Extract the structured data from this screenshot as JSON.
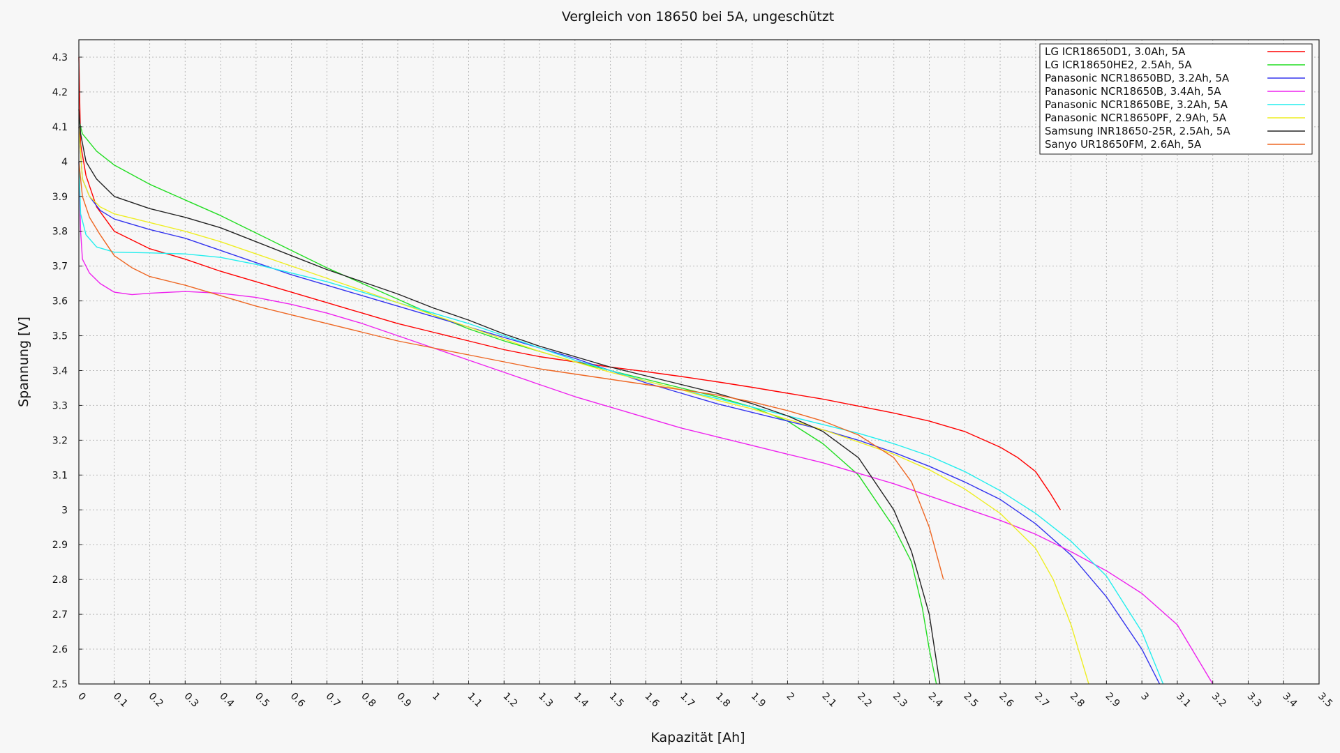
{
  "chart_data": {
    "type": "line",
    "title": "Vergleich von 18650 bei 5A, ungeschützt",
    "xlabel": "Kapazität [Ah]",
    "ylabel": "Spannung [V]",
    "xlim": [
      0,
      3.5
    ],
    "ylim": [
      2.5,
      4.35
    ],
    "grid": true,
    "legend_position": "top-right",
    "x_ticks": [
      "0",
      "0.1",
      "0.2",
      "0.3",
      "0.4",
      "0.5",
      "0.6",
      "0.7",
      "0.8",
      "0.9",
      "1",
      "1.1",
      "1.2",
      "1.3",
      "1.4",
      "1.5",
      "1.6",
      "1.7",
      "1.8",
      "1.9",
      "2",
      "2.1",
      "2.2",
      "2.3",
      "2.4",
      "2.5",
      "2.6",
      "2.7",
      "2.8",
      "2.9",
      "3",
      "3.1",
      "3.2",
      "3.3",
      "3.4",
      "3.5"
    ],
    "y_ticks": [
      "2.5",
      "2.6",
      "2.7",
      "2.8",
      "2.9",
      "3",
      "3.1",
      "3.2",
      "3.3",
      "3.4",
      "3.5",
      "3.6",
      "3.7",
      "3.8",
      "3.9",
      "4",
      "4.1",
      "4.2",
      "4.3"
    ],
    "series": [
      {
        "name": "LG ICR18650D1, 3.0Ah, 5A",
        "color": "#ff0000",
        "points": [
          [
            0,
            4.3
          ],
          [
            0.005,
            4.05
          ],
          [
            0.02,
            3.96
          ],
          [
            0.05,
            3.87
          ],
          [
            0.1,
            3.8
          ],
          [
            0.2,
            3.75
          ],
          [
            0.3,
            3.72
          ],
          [
            0.4,
            3.685
          ],
          [
            0.5,
            3.655
          ],
          [
            0.6,
            3.625
          ],
          [
            0.7,
            3.595
          ],
          [
            0.8,
            3.565
          ],
          [
            0.9,
            3.535
          ],
          [
            1.0,
            3.51
          ],
          [
            1.1,
            3.485
          ],
          [
            1.2,
            3.46
          ],
          [
            1.3,
            3.44
          ],
          [
            1.4,
            3.425
          ],
          [
            1.5,
            3.41
          ],
          [
            1.6,
            3.397
          ],
          [
            1.7,
            3.383
          ],
          [
            1.8,
            3.368
          ],
          [
            1.9,
            3.352
          ],
          [
            2.0,
            3.335
          ],
          [
            2.1,
            3.318
          ],
          [
            2.2,
            3.298
          ],
          [
            2.3,
            3.278
          ],
          [
            2.4,
            3.255
          ],
          [
            2.5,
            3.225
          ],
          [
            2.6,
            3.18
          ],
          [
            2.65,
            3.15
          ],
          [
            2.7,
            3.11
          ],
          [
            2.74,
            3.05
          ],
          [
            2.77,
            3.0
          ]
        ]
      },
      {
        "name": "LG ICR18650HE2, 2.5Ah, 5A",
        "color": "#22dd22",
        "points": [
          [
            0,
            4.12
          ],
          [
            0.01,
            4.08
          ],
          [
            0.05,
            4.03
          ],
          [
            0.1,
            3.99
          ],
          [
            0.2,
            3.935
          ],
          [
            0.3,
            3.89
          ],
          [
            0.4,
            3.845
          ],
          [
            0.5,
            3.795
          ],
          [
            0.6,
            3.745
          ],
          [
            0.7,
            3.695
          ],
          [
            0.8,
            3.65
          ],
          [
            0.9,
            3.605
          ],
          [
            1.0,
            3.56
          ],
          [
            1.1,
            3.52
          ],
          [
            1.2,
            3.485
          ],
          [
            1.3,
            3.455
          ],
          [
            1.4,
            3.425
          ],
          [
            1.5,
            3.4
          ],
          [
            1.6,
            3.375
          ],
          [
            1.7,
            3.35
          ],
          [
            1.8,
            3.325
          ],
          [
            1.9,
            3.295
          ],
          [
            2.0,
            3.255
          ],
          [
            2.1,
            3.19
          ],
          [
            2.2,
            3.1
          ],
          [
            2.3,
            2.95
          ],
          [
            2.35,
            2.85
          ],
          [
            2.38,
            2.72
          ],
          [
            2.4,
            2.6
          ],
          [
            2.42,
            2.5
          ]
        ]
      },
      {
        "name": "Panasonic NCR18650BD, 3.2Ah, 5A",
        "color": "#3333ee",
        "points": [
          [
            0,
            4.1
          ],
          [
            0.01,
            3.95
          ],
          [
            0.03,
            3.9
          ],
          [
            0.06,
            3.86
          ],
          [
            0.1,
            3.835
          ],
          [
            0.2,
            3.805
          ],
          [
            0.3,
            3.78
          ],
          [
            0.4,
            3.745
          ],
          [
            0.5,
            3.71
          ],
          [
            0.6,
            3.675
          ],
          [
            0.7,
            3.645
          ],
          [
            0.8,
            3.615
          ],
          [
            0.9,
            3.585
          ],
          [
            1.0,
            3.555
          ],
          [
            1.1,
            3.525
          ],
          [
            1.2,
            3.495
          ],
          [
            1.3,
            3.465
          ],
          [
            1.4,
            3.435
          ],
          [
            1.5,
            3.4
          ],
          [
            1.6,
            3.365
          ],
          [
            1.7,
            3.335
          ],
          [
            1.8,
            3.305
          ],
          [
            1.9,
            3.28
          ],
          [
            2.0,
            3.255
          ],
          [
            2.1,
            3.23
          ],
          [
            2.2,
            3.2
          ],
          [
            2.3,
            3.165
          ],
          [
            2.4,
            3.125
          ],
          [
            2.5,
            3.08
          ],
          [
            2.6,
            3.03
          ],
          [
            2.7,
            2.96
          ],
          [
            2.8,
            2.87
          ],
          [
            2.9,
            2.75
          ],
          [
            3.0,
            2.6
          ],
          [
            3.05,
            2.5
          ]
        ]
      },
      {
        "name": "Panasonic NCR18650B, 3.4Ah, 5A",
        "color": "#ee22ee",
        "points": [
          [
            0,
            4.0
          ],
          [
            0.005,
            3.8
          ],
          [
            0.01,
            3.72
          ],
          [
            0.03,
            3.68
          ],
          [
            0.06,
            3.65
          ],
          [
            0.1,
            3.625
          ],
          [
            0.15,
            3.618
          ],
          [
            0.2,
            3.622
          ],
          [
            0.3,
            3.627
          ],
          [
            0.4,
            3.622
          ],
          [
            0.5,
            3.61
          ],
          [
            0.6,
            3.59
          ],
          [
            0.7,
            3.565
          ],
          [
            0.8,
            3.535
          ],
          [
            0.9,
            3.5
          ],
          [
            1.0,
            3.465
          ],
          [
            1.1,
            3.43
          ],
          [
            1.2,
            3.395
          ],
          [
            1.3,
            3.36
          ],
          [
            1.4,
            3.325
          ],
          [
            1.5,
            3.295
          ],
          [
            1.6,
            3.265
          ],
          [
            1.7,
            3.235
          ],
          [
            1.8,
            3.21
          ],
          [
            1.9,
            3.185
          ],
          [
            2.0,
            3.16
          ],
          [
            2.1,
            3.135
          ],
          [
            2.2,
            3.105
          ],
          [
            2.3,
            3.075
          ],
          [
            2.4,
            3.04
          ],
          [
            2.5,
            3.005
          ],
          [
            2.6,
            2.97
          ],
          [
            2.7,
            2.93
          ],
          [
            2.8,
            2.88
          ],
          [
            2.9,
            2.825
          ],
          [
            3.0,
            2.76
          ],
          [
            3.1,
            2.67
          ],
          [
            3.2,
            2.5
          ]
        ]
      },
      {
        "name": "Panasonic NCR18650BE, 3.2Ah, 5A",
        "color": "#22eeee",
        "points": [
          [
            0,
            4.0
          ],
          [
            0.005,
            3.85
          ],
          [
            0.02,
            3.79
          ],
          [
            0.05,
            3.755
          ],
          [
            0.1,
            3.74
          ],
          [
            0.2,
            3.738
          ],
          [
            0.3,
            3.735
          ],
          [
            0.4,
            3.725
          ],
          [
            0.5,
            3.705
          ],
          [
            0.6,
            3.68
          ],
          [
            0.7,
            3.655
          ],
          [
            0.8,
            3.625
          ],
          [
            0.9,
            3.595
          ],
          [
            1.0,
            3.565
          ],
          [
            1.1,
            3.535
          ],
          [
            1.2,
            3.5
          ],
          [
            1.3,
            3.465
          ],
          [
            1.4,
            3.43
          ],
          [
            1.5,
            3.4
          ],
          [
            1.6,
            3.37
          ],
          [
            1.7,
            3.345
          ],
          [
            1.8,
            3.32
          ],
          [
            1.9,
            3.295
          ],
          [
            2.0,
            3.27
          ],
          [
            2.1,
            3.245
          ],
          [
            2.2,
            3.22
          ],
          [
            2.3,
            3.19
          ],
          [
            2.4,
            3.155
          ],
          [
            2.5,
            3.11
          ],
          [
            2.6,
            3.055
          ],
          [
            2.7,
            2.99
          ],
          [
            2.8,
            2.91
          ],
          [
            2.9,
            2.81
          ],
          [
            3.0,
            2.65
          ],
          [
            3.06,
            2.5
          ]
        ]
      },
      {
        "name": "Panasonic NCR18650PF, 2.9Ah, 5A",
        "color": "#eeee22",
        "points": [
          [
            0,
            4.1
          ],
          [
            0.01,
            3.95
          ],
          [
            0.03,
            3.9
          ],
          [
            0.06,
            3.87
          ],
          [
            0.1,
            3.85
          ],
          [
            0.2,
            3.825
          ],
          [
            0.3,
            3.8
          ],
          [
            0.4,
            3.77
          ],
          [
            0.5,
            3.735
          ],
          [
            0.6,
            3.7
          ],
          [
            0.7,
            3.665
          ],
          [
            0.8,
            3.63
          ],
          [
            0.9,
            3.595
          ],
          [
            1.0,
            3.56
          ],
          [
            1.1,
            3.525
          ],
          [
            1.2,
            3.49
          ],
          [
            1.3,
            3.455
          ],
          [
            1.4,
            3.425
          ],
          [
            1.5,
            3.395
          ],
          [
            1.6,
            3.37
          ],
          [
            1.7,
            3.345
          ],
          [
            1.8,
            3.315
          ],
          [
            1.9,
            3.29
          ],
          [
            2.0,
            3.26
          ],
          [
            2.1,
            3.23
          ],
          [
            2.2,
            3.195
          ],
          [
            2.3,
            3.16
          ],
          [
            2.4,
            3.115
          ],
          [
            2.5,
            3.06
          ],
          [
            2.6,
            2.99
          ],
          [
            2.7,
            2.89
          ],
          [
            2.75,
            2.8
          ],
          [
            2.8,
            2.67
          ],
          [
            2.85,
            2.5
          ]
        ]
      },
      {
        "name": "Samsung INR18650-25R, 2.5Ah, 5A",
        "color": "#222222",
        "points": [
          [
            0,
            4.15
          ],
          [
            0.005,
            4.08
          ],
          [
            0.02,
            4.0
          ],
          [
            0.05,
            3.95
          ],
          [
            0.1,
            3.9
          ],
          [
            0.2,
            3.865
          ],
          [
            0.3,
            3.84
          ],
          [
            0.4,
            3.81
          ],
          [
            0.5,
            3.77
          ],
          [
            0.6,
            3.73
          ],
          [
            0.7,
            3.69
          ],
          [
            0.8,
            3.655
          ],
          [
            0.9,
            3.62
          ],
          [
            1.0,
            3.58
          ],
          [
            1.1,
            3.545
          ],
          [
            1.2,
            3.505
          ],
          [
            1.3,
            3.47
          ],
          [
            1.4,
            3.44
          ],
          [
            1.5,
            3.41
          ],
          [
            1.6,
            3.385
          ],
          [
            1.7,
            3.36
          ],
          [
            1.8,
            3.335
          ],
          [
            1.9,
            3.305
          ],
          [
            2.0,
            3.27
          ],
          [
            2.1,
            3.225
          ],
          [
            2.2,
            3.15
          ],
          [
            2.3,
            3.0
          ],
          [
            2.35,
            2.88
          ],
          [
            2.4,
            2.7
          ],
          [
            2.43,
            2.5
          ]
        ]
      },
      {
        "name": "Sanyo UR18650FM, 2.6Ah, 5A",
        "color": "#ee6622",
        "points": [
          [
            0,
            4.0
          ],
          [
            0.01,
            3.9
          ],
          [
            0.03,
            3.84
          ],
          [
            0.06,
            3.79
          ],
          [
            0.1,
            3.73
          ],
          [
            0.15,
            3.695
          ],
          [
            0.2,
            3.67
          ],
          [
            0.3,
            3.645
          ],
          [
            0.4,
            3.615
          ],
          [
            0.5,
            3.585
          ],
          [
            0.6,
            3.56
          ],
          [
            0.7,
            3.535
          ],
          [
            0.8,
            3.51
          ],
          [
            0.9,
            3.485
          ],
          [
            1.0,
            3.465
          ],
          [
            1.1,
            3.445
          ],
          [
            1.2,
            3.425
          ],
          [
            1.3,
            3.405
          ],
          [
            1.4,
            3.39
          ],
          [
            1.5,
            3.375
          ],
          [
            1.6,
            3.36
          ],
          [
            1.7,
            3.345
          ],
          [
            1.8,
            3.33
          ],
          [
            1.9,
            3.31
          ],
          [
            2.0,
            3.285
          ],
          [
            2.1,
            3.255
          ],
          [
            2.2,
            3.215
          ],
          [
            2.3,
            3.15
          ],
          [
            2.35,
            3.08
          ],
          [
            2.4,
            2.95
          ],
          [
            2.44,
            2.8
          ]
        ]
      }
    ]
  }
}
